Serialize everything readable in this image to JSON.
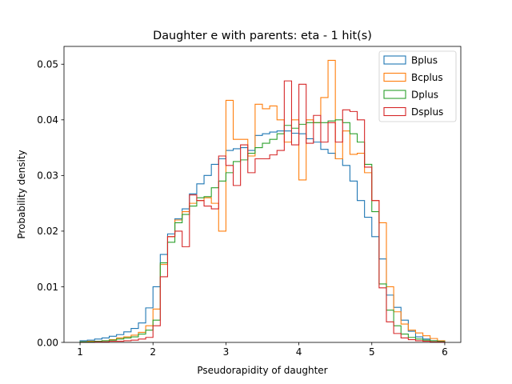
{
  "chart_data": {
    "type": "histogram",
    "title": "Daughter e with parents: eta - 1 hit(s)",
    "xlabel": "Pseudorapidity of daughter",
    "ylabel": "Probability density",
    "xlim": [
      0.78,
      6.22
    ],
    "ylim": [
      0,
      0.0532
    ],
    "xticks": [
      "1",
      "2",
      "3",
      "4",
      "5",
      "6"
    ],
    "yticks": [
      "0.00",
      "0.01",
      "0.02",
      "0.03",
      "0.04",
      "0.05"
    ],
    "grid": false,
    "legend_position": "top-right",
    "bins": {
      "start": 1.0,
      "end": 6.0,
      "count": 50
    },
    "series": [
      {
        "name": "Bplus",
        "color": "#1f77b4",
        "values": [
          0.0003,
          0.0004,
          0.0006,
          0.0008,
          0.0011,
          0.0014,
          0.0019,
          0.0025,
          0.0035,
          0.0062,
          0.01,
          0.0158,
          0.0195,
          0.0222,
          0.024,
          0.0267,
          0.0285,
          0.03,
          0.032,
          0.033,
          0.0345,
          0.0348,
          0.035,
          0.0345,
          0.0372,
          0.0375,
          0.0378,
          0.038,
          0.038,
          0.0376,
          0.0375,
          0.0366,
          0.036,
          0.0347,
          0.034,
          0.033,
          0.0318,
          0.029,
          0.0255,
          0.0225,
          0.019,
          0.015,
          0.0085,
          0.0063,
          0.004,
          0.002,
          0.001,
          0.0006,
          0.0003,
          0.0002
        ]
      },
      {
        "name": "Bcplus",
        "color": "#ff7f0e",
        "values": [
          0.0001,
          0.0002,
          0.0002,
          0.0003,
          0.0005,
          0.0008,
          0.001,
          0.0013,
          0.0018,
          0.003,
          0.006,
          0.014,
          0.019,
          0.022,
          0.0235,
          0.025,
          0.0255,
          0.026,
          0.025,
          0.02,
          0.0435,
          0.0365,
          0.0365,
          0.0335,
          0.0428,
          0.042,
          0.0425,
          0.04,
          0.036,
          0.04,
          0.0292,
          0.04,
          0.0395,
          0.044,
          0.0507,
          0.033,
          0.038,
          0.0338,
          0.034,
          0.0305,
          0.0255,
          0.0215,
          0.01,
          0.0055,
          0.0033,
          0.0022,
          0.0017,
          0.0012,
          0.0007,
          0.0003
        ]
      },
      {
        "name": "Dplus",
        "color": "#2ca02c",
        "values": [
          0.0001,
          0.0001,
          0.0002,
          0.0003,
          0.0004,
          0.0006,
          0.0008,
          0.001,
          0.0015,
          0.0022,
          0.004,
          0.0143,
          0.018,
          0.0215,
          0.023,
          0.0245,
          0.026,
          0.0262,
          0.0278,
          0.029,
          0.0305,
          0.0325,
          0.0328,
          0.034,
          0.035,
          0.0358,
          0.0365,
          0.0375,
          0.039,
          0.0385,
          0.0392,
          0.0395,
          0.0395,
          0.0395,
          0.0398,
          0.04,
          0.0395,
          0.0375,
          0.036,
          0.032,
          0.0235,
          0.0105,
          0.0058,
          0.003,
          0.0015,
          0.0009,
          0.0006,
          0.0004,
          0.0003,
          0.0002
        ]
      },
      {
        "name": "Dsplus",
        "color": "#d62728",
        "values": [
          0.0,
          0.0,
          0.0001,
          0.0001,
          0.0002,
          0.0002,
          0.0003,
          0.0004,
          0.0006,
          0.0009,
          0.003,
          0.0118,
          0.019,
          0.02,
          0.0172,
          0.0265,
          0.0255,
          0.0245,
          0.024,
          0.0335,
          0.0318,
          0.0282,
          0.0355,
          0.0305,
          0.033,
          0.033,
          0.0337,
          0.0345,
          0.047,
          0.0355,
          0.0464,
          0.0358,
          0.0408,
          0.036,
          0.0395,
          0.036,
          0.0418,
          0.0415,
          0.04,
          0.0315,
          0.0255,
          0.0098,
          0.0037,
          0.0016,
          0.0008,
          0.0005,
          0.0003,
          0.0002,
          0.0001,
          0.0001
        ]
      }
    ]
  }
}
